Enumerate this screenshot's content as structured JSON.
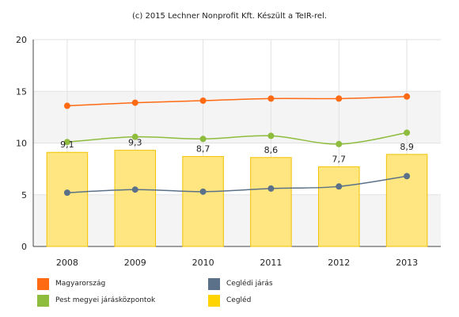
{
  "caption": "(c) 2015 Lechner Nonprofit Kft. Készült a TeIR-rel.",
  "chart_data": {
    "type": "bar+line",
    "title": "",
    "xlabel": "",
    "ylabel": "",
    "categories": [
      "2008",
      "2009",
      "2010",
      "2011",
      "2012",
      "2013"
    ],
    "ylim": [
      0,
      20
    ],
    "yticks": [
      "0",
      "5",
      "10",
      "15",
      "20"
    ],
    "grid": "horizontal bands",
    "legend_position": "bottom",
    "bar_series": {
      "name": "Cegléd",
      "color": "#ffe680",
      "border_color": "#f2c200",
      "values": [
        9.1,
        9.3,
        8.7,
        8.6,
        7.7,
        8.9
      ],
      "labels": [
        "9,1",
        "9,3",
        "8,7",
        "8,6",
        "7,7",
        "8,9"
      ]
    },
    "line_series": [
      {
        "name": "Magyarország",
        "color": "#ff6a13",
        "values": [
          13.6,
          13.9,
          14.1,
          14.3,
          14.3,
          14.5
        ]
      },
      {
        "name": "Pest megyei járásközpontok",
        "color": "#8ebc3c",
        "values": [
          10.1,
          10.6,
          10.4,
          10.7,
          9.9,
          11.0
        ]
      },
      {
        "name": "Ceglédi járás",
        "color": "#5b7189",
        "values": [
          5.2,
          5.5,
          5.3,
          5.6,
          5.8,
          6.8
        ]
      }
    ]
  },
  "legend": [
    {
      "name": "Magyarország",
      "color": "#ff6a13"
    },
    {
      "name": "Ceglédi járás",
      "color": "#5b7189"
    },
    {
      "name": "Pest megyei járásközpontok",
      "color": "#8ebc3c"
    },
    {
      "name": "Cegléd",
      "color": "#ffd400"
    }
  ]
}
